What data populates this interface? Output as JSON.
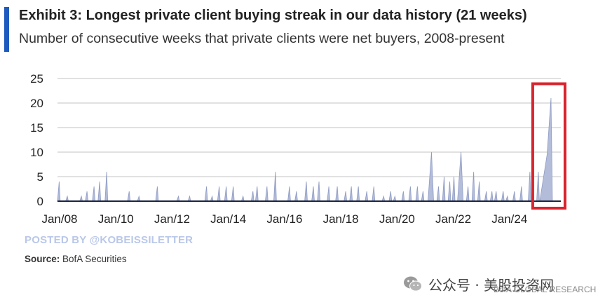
{
  "header": {
    "title": "Exhibit 3: Longest private client buying streak in our data history (21 weeks)",
    "subtitle": "Number of consecutive weeks that private clients were net buyers, 2008-present"
  },
  "footer": {
    "watermark": "POSTED BY @KOBEISSILETTER",
    "source_label": "Source:",
    "source_text": "BofA Securities",
    "wechat_text": "公众号 · 美股投资网",
    "bofa_research": "BofA GLOBAL RESEARCH",
    "wechat_icon": "wechat-icon"
  },
  "colors": {
    "series": "#b3bdda",
    "series_edge": "#8f9bc4",
    "baseline": "#1b2440",
    "grid": "#cfcfcf",
    "highlight_box": "#d9232d",
    "accent": "#1f5bbf"
  },
  "chart_data": {
    "type": "area",
    "title": "Exhibit 3: Longest private client buying streak in our data history (21 weeks)",
    "subtitle": "Number of consecutive weeks that private clients were net buyers, 2008-present",
    "xlabel": "",
    "ylabel": "",
    "xlim": [
      2008,
      2025.9
    ],
    "ylim": [
      0,
      25
    ],
    "yticks": [
      0,
      5,
      10,
      15,
      20,
      25
    ],
    "xticks": [
      {
        "value": 2008,
        "label": "Jan/08"
      },
      {
        "value": 2010,
        "label": "Jan/10"
      },
      {
        "value": 2012,
        "label": "Jan/12"
      },
      {
        "value": 2014,
        "label": "Jan/14"
      },
      {
        "value": 2016,
        "label": "Jan/16"
      },
      {
        "value": 2018,
        "label": "Jan/18"
      },
      {
        "value": 2020,
        "label": "Jan/20"
      },
      {
        "value": 2022,
        "label": "Jan/22"
      },
      {
        "value": 2024,
        "label": "Jan/24"
      }
    ],
    "grid": true,
    "highlight": {
      "x_start": 2025.1,
      "x_end": 2025.6,
      "y_max": 23.5
    },
    "series": [
      {
        "name": "Consecutive weeks of net buying (streak peaks)",
        "peaks": [
          {
            "x": 2008.06,
            "y": 4
          },
          {
            "x": 2008.35,
            "y": 1
          },
          {
            "x": 2008.85,
            "y": 1
          },
          {
            "x": 2009.05,
            "y": 2
          },
          {
            "x": 2009.3,
            "y": 3
          },
          {
            "x": 2009.5,
            "y": 4
          },
          {
            "x": 2009.75,
            "y": 6
          },
          {
            "x": 2010.55,
            "y": 2
          },
          {
            "x": 2010.9,
            "y": 1
          },
          {
            "x": 2011.55,
            "y": 3
          },
          {
            "x": 2012.3,
            "y": 1
          },
          {
            "x": 2012.7,
            "y": 1
          },
          {
            "x": 2013.3,
            "y": 3
          },
          {
            "x": 2013.5,
            "y": 1
          },
          {
            "x": 2013.75,
            "y": 3
          },
          {
            "x": 2014.0,
            "y": 3
          },
          {
            "x": 2014.25,
            "y": 3
          },
          {
            "x": 2014.6,
            "y": 1
          },
          {
            "x": 2014.95,
            "y": 2
          },
          {
            "x": 2015.1,
            "y": 3
          },
          {
            "x": 2015.45,
            "y": 3
          },
          {
            "x": 2015.75,
            "y": 6
          },
          {
            "x": 2016.25,
            "y": 3
          },
          {
            "x": 2016.5,
            "y": 2
          },
          {
            "x": 2016.85,
            "y": 4
          },
          {
            "x": 2017.1,
            "y": 3
          },
          {
            "x": 2017.3,
            "y": 4
          },
          {
            "x": 2017.65,
            "y": 3
          },
          {
            "x": 2017.95,
            "y": 3
          },
          {
            "x": 2018.25,
            "y": 2
          },
          {
            "x": 2018.45,
            "y": 3
          },
          {
            "x": 2018.7,
            "y": 3
          },
          {
            "x": 2019.0,
            "y": 2
          },
          {
            "x": 2019.25,
            "y": 3
          },
          {
            "x": 2019.6,
            "y": 1
          },
          {
            "x": 2019.85,
            "y": 2
          },
          {
            "x": 2020.0,
            "y": 1
          },
          {
            "x": 2020.3,
            "y": 2
          },
          {
            "x": 2020.55,
            "y": 3
          },
          {
            "x": 2020.8,
            "y": 3
          },
          {
            "x": 2021.0,
            "y": 2
          },
          {
            "x": 2021.3,
            "y": 10
          },
          {
            "x": 2021.55,
            "y": 3
          },
          {
            "x": 2021.75,
            "y": 5
          },
          {
            "x": 2021.95,
            "y": 4
          },
          {
            "x": 2022.1,
            "y": 5
          },
          {
            "x": 2022.35,
            "y": 10
          },
          {
            "x": 2022.6,
            "y": 3
          },
          {
            "x": 2022.8,
            "y": 6
          },
          {
            "x": 2023.0,
            "y": 4
          },
          {
            "x": 2023.25,
            "y": 2
          },
          {
            "x": 2023.45,
            "y": 2
          },
          {
            "x": 2023.6,
            "y": 2
          },
          {
            "x": 2023.85,
            "y": 2
          },
          {
            "x": 2024.0,
            "y": 1
          },
          {
            "x": 2024.25,
            "y": 2
          },
          {
            "x": 2024.5,
            "y": 3
          },
          {
            "x": 2024.8,
            "y": 6
          },
          {
            "x": 2025.1,
            "y": 6
          },
          {
            "x": 2025.55,
            "y": 21
          }
        ]
      }
    ]
  }
}
